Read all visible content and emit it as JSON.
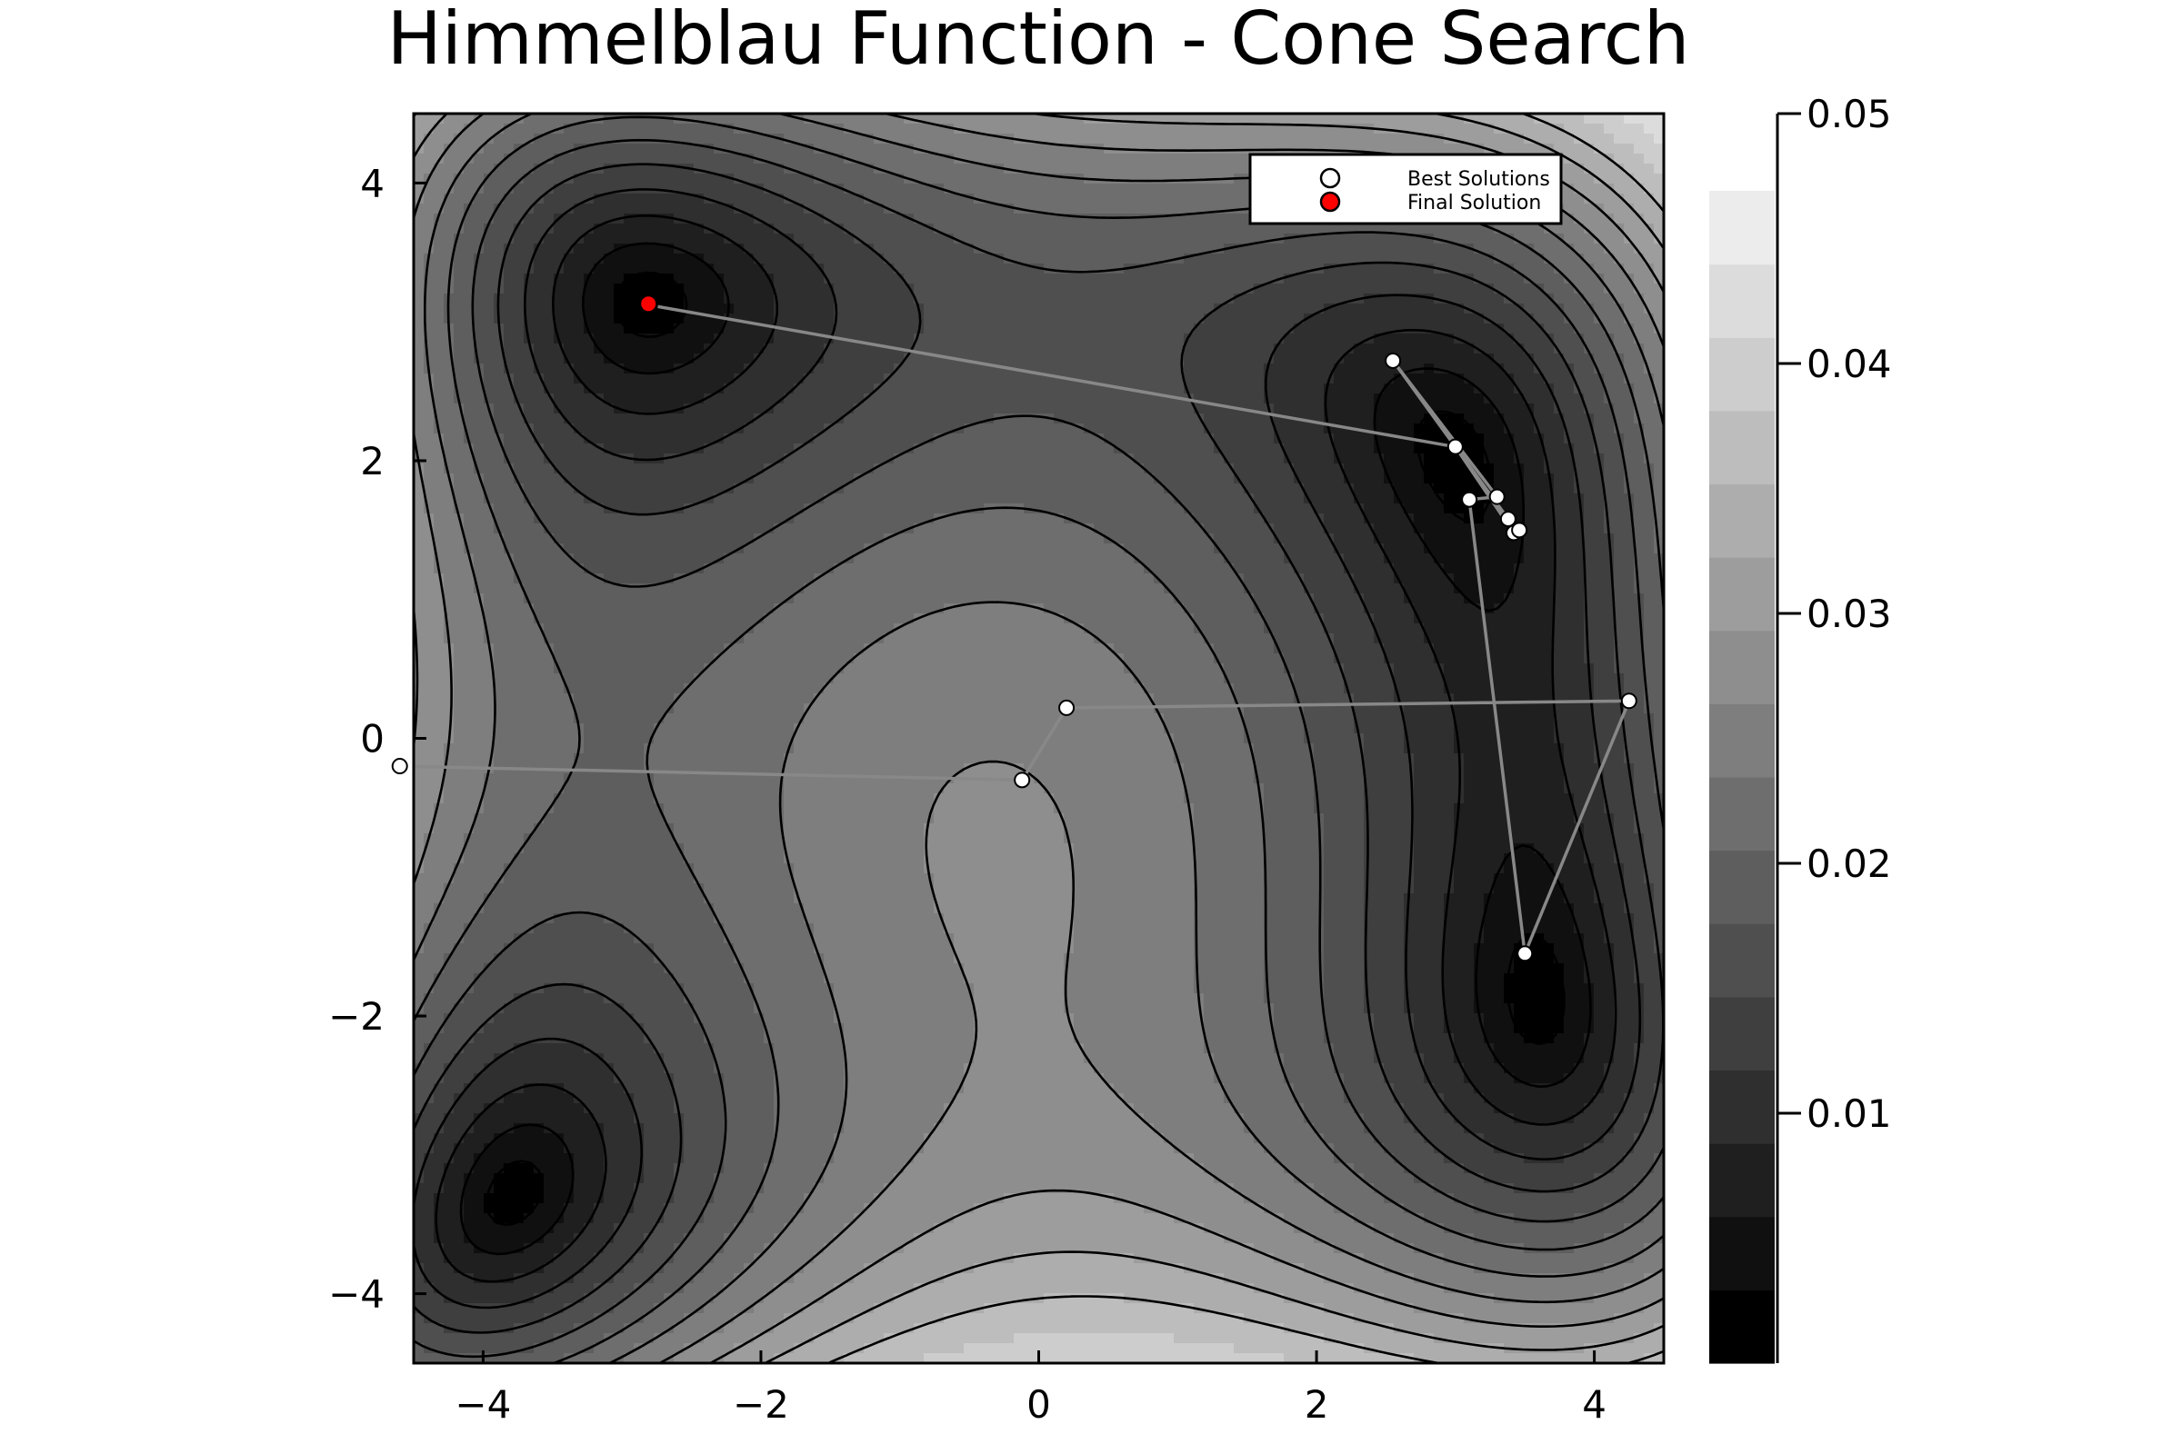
{
  "chart_data": {
    "type": "contour",
    "title": "Himmelblau Function - Cone Search",
    "xlabel": "",
    "ylabel": "",
    "xlim": [
      -4.5,
      4.5
    ],
    "ylim": [
      -4.5,
      4.5
    ],
    "x_ticks": [
      -4,
      -2,
      0,
      2,
      4
    ],
    "x_tick_labels": [
      "−4",
      "−2",
      "0",
      "2",
      "4"
    ],
    "y_ticks": [
      -4,
      -2,
      0,
      2,
      4
    ],
    "y_tick_labels": [
      "−4",
      "−2",
      "0",
      "2",
      "4"
    ],
    "grid": false,
    "colorbar": {
      "min": 0.0,
      "max": 0.05,
      "ticks": [
        0.01,
        0.02,
        0.03,
        0.04,
        0.05
      ],
      "tick_labels": [
        "0.01",
        "0.02",
        "0.03",
        "0.04",
        "0.05"
      ],
      "levels": 16,
      "colormap": "grayscale",
      "low_color": "#000000",
      "high_color": "#ececec"
    },
    "legend": {
      "placement": "top-right",
      "entries": [
        {
          "label": "Best Solutions",
          "marker_fill": "#ffffff"
        },
        {
          "label": "Final Solution",
          "marker_fill": "#ff0000"
        }
      ]
    },
    "path_color": "#888888",
    "series": [
      {
        "name": "Best Solutions",
        "x": [
          -4.6,
          -0.12,
          0.2,
          4.25,
          3.5,
          3.1,
          3.3,
          2.55,
          3.0,
          3.42,
          3.46,
          3.38,
          3.0,
          -2.8
        ],
        "y": [
          -0.2,
          -0.3,
          0.22,
          0.27,
          -1.55,
          1.72,
          1.74,
          2.72,
          2.1,
          1.48,
          1.5,
          1.58,
          2.1,
          3.12
        ]
      },
      {
        "name": "Final Solution",
        "x": [
          -2.81
        ],
        "y": [
          3.13
        ]
      }
    ]
  }
}
